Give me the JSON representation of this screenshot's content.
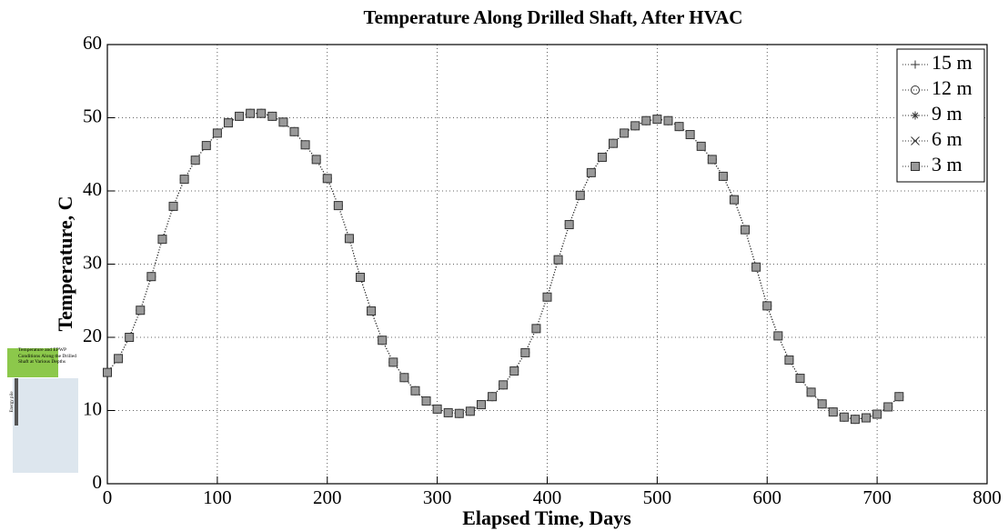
{
  "chart_data": {
    "type": "line",
    "title": "Temperature Along Drilled Shaft, After HVAC",
    "xlabel": "Elapsed Time, Days",
    "ylabel": "Temperature, C",
    "x": [
      0,
      10,
      20,
      30,
      40,
      50,
      60,
      70,
      80,
      90,
      100,
      110,
      120,
      130,
      140,
      150,
      160,
      170,
      180,
      190,
      200,
      210,
      220,
      230,
      240,
      250,
      260,
      270,
      280,
      290,
      300,
      310,
      320,
      330,
      340,
      350,
      360,
      370,
      380,
      390,
      400,
      410,
      420,
      430,
      440,
      450,
      460,
      470,
      480,
      490,
      500,
      510,
      520,
      530,
      540,
      550,
      560,
      570,
      580,
      590,
      600,
      610,
      620,
      630,
      640,
      650,
      660,
      670,
      680,
      690,
      700,
      710,
      720
    ],
    "series": [
      {
        "name": "15 m",
        "color": "#333333",
        "marker": "+",
        "values": [
          15.2,
          17.1,
          20.0,
          23.7,
          28.3,
          33.4,
          37.9,
          41.6,
          44.2,
          46.2,
          47.9,
          49.3,
          50.2,
          50.6,
          50.6,
          50.2,
          49.4,
          48.1,
          46.3,
          44.3,
          41.7,
          38.0,
          33.5,
          28.2,
          23.6,
          19.6,
          16.6,
          14.5,
          12.7,
          11.3,
          10.2,
          9.7,
          9.6,
          9.9,
          10.8,
          11.9,
          13.5,
          15.4,
          17.9,
          21.2,
          25.5,
          30.6,
          35.4,
          39.4,
          42.5,
          44.6,
          46.5,
          47.9,
          48.9,
          49.6,
          49.8,
          49.6,
          48.8,
          47.7,
          46.1,
          44.3,
          42.0,
          38.8,
          34.7,
          29.6,
          24.3,
          20.2,
          16.9,
          14.4,
          12.5,
          10.9,
          9.8,
          9.1,
          8.8,
          9.0,
          9.5,
          10.5,
          11.9
        ]
      },
      {
        "name": "12 m",
        "color": "#333333",
        "marker": "o",
        "values": [
          15.2,
          17.1,
          20.0,
          23.7,
          28.3,
          33.4,
          37.9,
          41.6,
          44.2,
          46.2,
          47.9,
          49.3,
          50.2,
          50.6,
          50.6,
          50.2,
          49.4,
          48.1,
          46.3,
          44.3,
          41.7,
          38.0,
          33.5,
          28.2,
          23.6,
          19.6,
          16.6,
          14.5,
          12.7,
          11.3,
          10.2,
          9.7,
          9.6,
          9.9,
          10.8,
          11.9,
          13.5,
          15.4,
          17.9,
          21.2,
          25.5,
          30.6,
          35.4,
          39.4,
          42.5,
          44.6,
          46.5,
          47.9,
          48.9,
          49.6,
          49.8,
          49.6,
          48.8,
          47.7,
          46.1,
          44.3,
          42.0,
          38.8,
          34.7,
          29.6,
          24.3,
          20.2,
          16.9,
          14.4,
          12.5,
          10.9,
          9.8,
          9.1,
          8.8,
          9.0,
          9.5,
          10.5,
          11.9
        ]
      },
      {
        "name": "9 m",
        "color": "#333333",
        "marker": "*",
        "values": [
          15.2,
          17.1,
          20.0,
          23.7,
          28.3,
          33.4,
          37.9,
          41.6,
          44.2,
          46.2,
          47.9,
          49.3,
          50.2,
          50.6,
          50.6,
          50.2,
          49.4,
          48.1,
          46.3,
          44.3,
          41.7,
          38.0,
          33.5,
          28.2,
          23.6,
          19.6,
          16.6,
          14.5,
          12.7,
          11.3,
          10.2,
          9.7,
          9.6,
          9.9,
          10.8,
          11.9,
          13.5,
          15.4,
          17.9,
          21.2,
          25.5,
          30.6,
          35.4,
          39.4,
          42.5,
          44.6,
          46.5,
          47.9,
          48.9,
          49.6,
          49.8,
          49.6,
          48.8,
          47.7,
          46.1,
          44.3,
          42.0,
          38.8,
          34.7,
          29.6,
          24.3,
          20.2,
          16.9,
          14.4,
          12.5,
          10.9,
          9.8,
          9.1,
          8.8,
          9.0,
          9.5,
          10.5,
          11.9
        ]
      },
      {
        "name": "6 m",
        "color": "#333333",
        "marker": "x",
        "values": [
          15.2,
          17.1,
          20.0,
          23.7,
          28.3,
          33.4,
          37.9,
          41.6,
          44.2,
          46.2,
          47.9,
          49.3,
          50.2,
          50.6,
          50.6,
          50.2,
          49.4,
          48.1,
          46.3,
          44.3,
          41.7,
          38.0,
          33.5,
          28.2,
          23.6,
          19.6,
          16.6,
          14.5,
          12.7,
          11.3,
          10.2,
          9.7,
          9.6,
          9.9,
          10.8,
          11.9,
          13.5,
          15.4,
          17.9,
          21.2,
          25.5,
          30.6,
          35.4,
          39.4,
          42.5,
          44.6,
          46.5,
          47.9,
          48.9,
          49.6,
          49.8,
          49.6,
          48.8,
          47.7,
          46.1,
          44.3,
          42.0,
          38.8,
          34.7,
          29.6,
          24.3,
          20.2,
          16.9,
          14.4,
          12.5,
          10.9,
          9.8,
          9.1,
          8.8,
          9.0,
          9.5,
          10.5,
          11.9
        ]
      },
      {
        "name": "3 m",
        "color": "#333333",
        "marker": "s",
        "values": [
          15.2,
          17.1,
          20.0,
          23.7,
          28.3,
          33.4,
          37.9,
          41.6,
          44.2,
          46.2,
          47.9,
          49.3,
          50.2,
          50.6,
          50.6,
          50.2,
          49.4,
          48.1,
          46.3,
          44.3,
          41.7,
          38.0,
          33.5,
          28.2,
          23.6,
          19.6,
          16.6,
          14.5,
          12.7,
          11.3,
          10.2,
          9.7,
          9.6,
          9.9,
          10.8,
          11.9,
          13.5,
          15.4,
          17.9,
          21.2,
          25.5,
          30.6,
          35.4,
          39.4,
          42.5,
          44.6,
          46.5,
          47.9,
          48.9,
          49.6,
          49.8,
          49.6,
          48.8,
          47.7,
          46.1,
          44.3,
          42.0,
          38.8,
          34.7,
          29.6,
          24.3,
          20.2,
          16.9,
          14.4,
          12.5,
          10.9,
          9.8,
          9.1,
          8.8,
          9.0,
          9.5,
          10.5,
          11.9
        ]
      }
    ],
    "xlim": [
      0,
      800
    ],
    "xticks": [
      0,
      100,
      200,
      300,
      400,
      500,
      600,
      700,
      800
    ],
    "ylim": [
      0,
      60
    ],
    "yticks": [
      0,
      10,
      20,
      30,
      40,
      50,
      60
    ],
    "grid": true,
    "legend_position": "upper right"
  },
  "inset": {
    "title": "Temperature and EPWP Conditions Along the Drilled Shaft at Various Depths",
    "label": "Energy pile"
  }
}
